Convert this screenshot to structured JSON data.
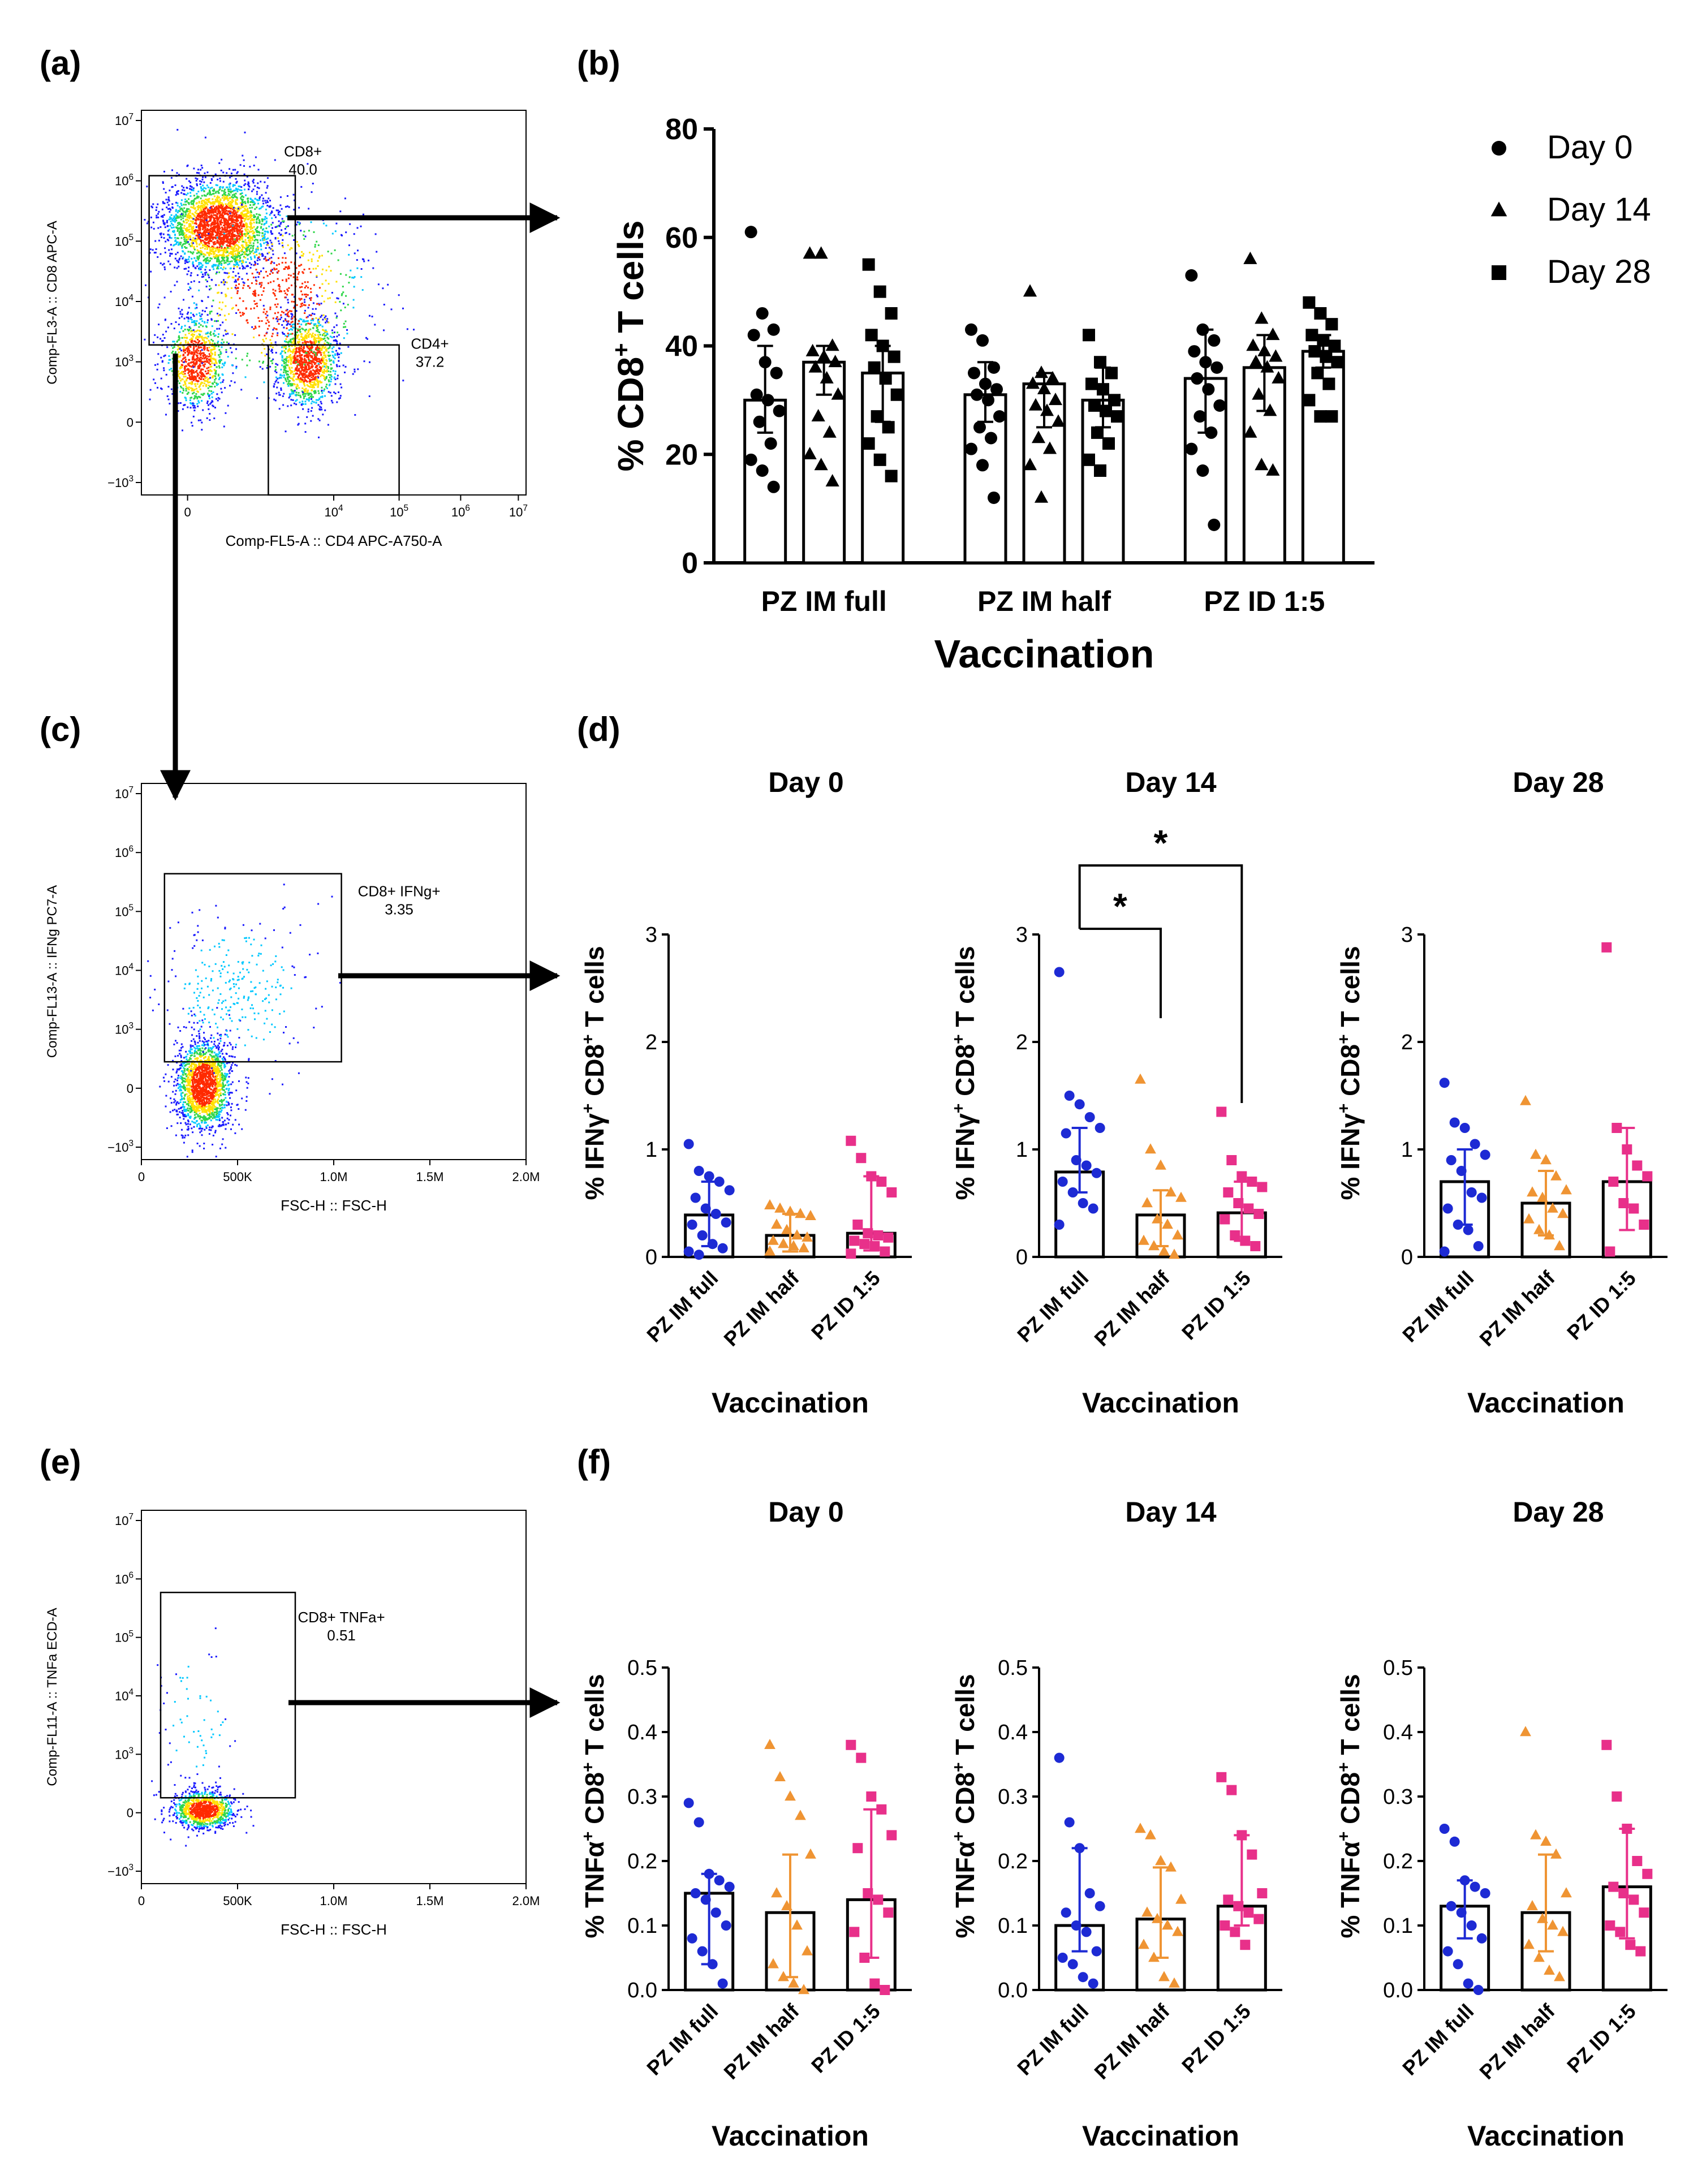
{
  "panel_labels": [
    "(a)",
    "(b)",
    "(c)",
    "(d)",
    "(e)",
    "(f)"
  ],
  "colors": {
    "PZ IM full": "#1d2ad4",
    "PZ IM half": "#ef9433",
    "PZ ID 1:5": "#e8308a",
    "black": "#000000",
    "flow_gradient": [
      "#1a1aff",
      "#00c8ff",
      "#2fd64a",
      "#ffe000",
      "#ff2a00"
    ]
  },
  "flow_plots": [
    {
      "id": "a",
      "xlabel": "Comp-FL5-A :: CD4 APC-A750-A",
      "ylabel": "Comp-FL3-A :: CD8 APC-A",
      "xticks": [
        "0",
        "10^4",
        "10^5",
        "10^6",
        "10^7"
      ],
      "yticks": [
        "10^7",
        "10^6",
        "10^5",
        "10^4",
        "10^3",
        "0",
        "-10^3"
      ],
      "gates": [
        {
          "name": "CD8+",
          "value": "40.0"
        },
        {
          "name": "CD4+",
          "value": "37.2"
        }
      ]
    },
    {
      "id": "c",
      "xlabel": "FSC-H :: FSC-H",
      "ylabel": "Comp-FL13-A :: IFNg PC7-A",
      "xticks": [
        "0",
        "500K",
        "1.0M",
        "1.5M",
        "2.0M"
      ],
      "yticks": [
        "10^7",
        "10^6",
        "10^5",
        "10^4",
        "10^3",
        "0",
        "-10^3"
      ],
      "gates": [
        {
          "name": "CD8+ IFNg+",
          "value": "3.35"
        }
      ]
    },
    {
      "id": "e",
      "xlabel": "FSC-H :: FSC-H",
      "ylabel": "Comp-FL11-A :: TNFa ECD-A",
      "xticks": [
        "0",
        "500K",
        "1.0M",
        "1.5M",
        "2.0M"
      ],
      "yticks": [
        "10^7",
        "10^6",
        "10^5",
        "10^4",
        "10^3",
        "0",
        "-10^3"
      ],
      "gates": [
        {
          "name": "CD8+ TNFa+",
          "value": "0.51"
        }
      ]
    }
  ],
  "chart_data": [
    {
      "id": "b",
      "type": "bar",
      "title": "",
      "xlabel": "Vaccination",
      "ylabel": "% CD8+ T cells",
      "ylim": [
        0,
        80
      ],
      "yticks": [
        0,
        20,
        40,
        60,
        80
      ],
      "categories": [
        "PZ IM full",
        "PZ IM half",
        "PZ ID 1:5"
      ],
      "legend": {
        "position": "top-right",
        "entries": [
          {
            "label": "Day 0",
            "marker": "circle"
          },
          {
            "label": "Day 14",
            "marker": "triangle"
          },
          {
            "label": "Day 28",
            "marker": "square"
          }
        ]
      },
      "series": [
        {
          "name": "Day 0",
          "marker": "circle",
          "values": [
            30,
            31,
            34
          ],
          "err": [
            [
              24,
              40
            ],
            [
              26,
              37
            ],
            [
              24,
              43
            ]
          ],
          "points": [
            [
              61,
              46,
              43,
              42,
              37,
              35,
              31,
              30,
              28,
              26,
              22,
              19,
              17,
              14
            ],
            [
              43,
              41,
              36,
              35,
              33,
              32,
              31,
              30,
              27,
              25,
              23,
              21,
              18,
              12
            ],
            [
              53,
              43,
              41,
              39,
              37,
              36,
              34,
              32,
              29,
              27,
              24,
              21,
              17,
              7
            ]
          ]
        },
        {
          "name": "Day 14",
          "marker": "triangle",
          "values": [
            37,
            33,
            36
          ],
          "err": [
            [
              31,
              40
            ],
            [
              25,
              35
            ],
            [
              28,
              42
            ]
          ],
          "points": [
            [
              57,
              57,
              40,
              39,
              38,
              37,
              36,
              34,
              31,
              27,
              24,
              20,
              18,
              15
            ],
            [
              50,
              35,
              34,
              33,
              32,
              30,
              29,
              28,
              26,
              23,
              21,
              18,
              12
            ],
            [
              56,
              45,
              42,
              40,
              39,
              38,
              37,
              36,
              34,
              31,
              28,
              24,
              18,
              17
            ]
          ]
        },
        {
          "name": "Day 28",
          "marker": "square",
          "values": [
            35,
            30,
            39
          ],
          "err": [
            [
              26,
              40
            ],
            [
              25,
              36
            ],
            [
              36,
              42
            ]
          ],
          "points": [
            [
              55,
              50,
              46,
              42,
              40,
              38,
              36,
              34,
              31,
              27,
              25,
              22,
              19,
              16
            ],
            [
              42,
              37,
              35,
              33,
              32,
              30,
              29,
              28,
              27,
              24,
              22,
              19,
              17
            ],
            [
              48,
              46,
              44,
              42,
              41,
              40,
              39,
              38,
              37,
              35,
              33,
              30,
              27,
              27
            ]
          ]
        }
      ]
    },
    {
      "id": "d-day0",
      "type": "bar",
      "title": "Day 0",
      "xlabel": "Vaccination",
      "ylabel": "% IFNγ+ CD8+ T cells",
      "ylim": [
        0,
        3
      ],
      "yticks": [
        0,
        1,
        2,
        3
      ],
      "categories": [
        "PZ IM full",
        "PZ IM half",
        "PZ ID 1:5"
      ],
      "values": [
        0.39,
        0.2,
        0.22
      ],
      "err": [
        [
          0.1,
          0.7
        ],
        [
          0.05,
          0.4
        ],
        [
          0.06,
          0.75
        ]
      ],
      "points": [
        [
          1.05,
          0.8,
          0.75,
          0.7,
          0.62,
          0.55,
          0.45,
          0.4,
          0.32,
          0.3,
          0.2,
          0.12,
          0.08,
          0.05,
          0.02
        ],
        [
          0.48,
          0.45,
          0.42,
          0.4,
          0.38,
          0.3,
          0.25,
          0.2,
          0.18,
          0.15,
          0.12,
          0.1,
          0.08,
          0.05
        ],
        [
          1.08,
          0.92,
          0.75,
          0.7,
          0.6,
          0.3,
          0.22,
          0.2,
          0.18,
          0.15,
          0.12,
          0.1,
          0.05,
          0.03
        ]
      ],
      "significance": []
    },
    {
      "id": "d-day14",
      "type": "bar",
      "title": "Day 14",
      "xlabel": "Vaccination",
      "ylabel": "% IFNγ+ CD8+ T cells",
      "ylim": [
        0,
        3
      ],
      "yticks": [
        0,
        1,
        2,
        3
      ],
      "categories": [
        "PZ IM full",
        "PZ IM half",
        "PZ ID 1:5"
      ],
      "values": [
        0.79,
        0.39,
        0.41
      ],
      "err": [
        [
          0.6,
          1.2
        ],
        [
          0.1,
          0.62
        ],
        [
          0.15,
          0.7
        ]
      ],
      "points": [
        [
          2.65,
          1.5,
          1.42,
          1.3,
          1.2,
          1.15,
          0.9,
          0.85,
          0.78,
          0.7,
          0.6,
          0.5,
          0.45,
          0.3
        ],
        [
          1.65,
          1.0,
          0.85,
          0.6,
          0.55,
          0.5,
          0.35,
          0.3,
          0.2,
          0.15,
          0.1,
          0.05,
          0.02
        ],
        [
          1.35,
          0.9,
          0.75,
          0.7,
          0.65,
          0.6,
          0.5,
          0.45,
          0.4,
          0.35,
          0.2,
          0.15,
          0.1
        ]
      ],
      "significance": [
        {
          "from": "PZ IM full",
          "to": "PZ IM half",
          "label": "*"
        },
        {
          "from": "PZ IM full",
          "to": "PZ ID 1:5",
          "label": "*"
        }
      ]
    },
    {
      "id": "d-day28",
      "type": "bar",
      "title": "Day 28",
      "xlabel": "Vaccination",
      "ylabel": "% IFNγ+ CD8+ T cells",
      "ylim": [
        0,
        3
      ],
      "yticks": [
        0,
        1,
        2,
        3
      ],
      "categories": [
        "PZ IM full",
        "PZ IM half",
        "PZ ID 1:5"
      ],
      "values": [
        0.7,
        0.5,
        0.7
      ],
      "err": [
        [
          0.3,
          1.0
        ],
        [
          0.2,
          0.8
        ],
        [
          0.25,
          1.2
        ]
      ],
      "points": [
        [
          1.62,
          1.25,
          1.2,
          1.05,
          0.95,
          0.9,
          0.8,
          0.6,
          0.55,
          0.45,
          0.3,
          0.25,
          0.1,
          0.05
        ],
        [
          1.45,
          0.95,
          0.9,
          0.75,
          0.62,
          0.6,
          0.55,
          0.45,
          0.4,
          0.35,
          0.25,
          0.2,
          0.1
        ],
        [
          2.88,
          1.2,
          1.0,
          0.85,
          0.75,
          0.7,
          0.5,
          0.45,
          0.3,
          0.05
        ]
      ],
      "significance": []
    },
    {
      "id": "f-day0",
      "type": "bar",
      "title": "Day 0",
      "xlabel": "Vaccination",
      "ylabel": "% TNFα+ CD8+ T cells",
      "ylim": [
        0,
        0.5
      ],
      "yticks": [
        0.0,
        0.1,
        0.2,
        0.3,
        0.4,
        0.5
      ],
      "categories": [
        "PZ IM full",
        "PZ IM half",
        "PZ ID 1:5"
      ],
      "values": [
        0.15,
        0.12,
        0.14
      ],
      "err": [
        [
          0.04,
          0.18
        ],
        [
          0.02,
          0.21
        ],
        [
          0.05,
          0.28
        ]
      ],
      "points": [
        [
          0.29,
          0.26,
          0.18,
          0.17,
          0.16,
          0.15,
          0.14,
          0.12,
          0.1,
          0.08,
          0.06,
          0.04,
          0.01
        ],
        [
          0.38,
          0.33,
          0.3,
          0.27,
          0.21,
          0.15,
          0.13,
          0.1,
          0.06,
          0.04,
          0.02,
          0.01,
          0.0
        ],
        [
          0.38,
          0.36,
          0.3,
          0.28,
          0.24,
          0.22,
          0.15,
          0.14,
          0.12,
          0.09,
          0.05,
          0.01,
          0.0
        ]
      ],
      "significance": []
    },
    {
      "id": "f-day14",
      "type": "bar",
      "title": "Day 14",
      "xlabel": "Vaccination",
      "ylabel": "% TNFα+ CD8+ T cells",
      "ylim": [
        0,
        0.5
      ],
      "yticks": [
        0.0,
        0.1,
        0.2,
        0.3,
        0.4,
        0.5
      ],
      "categories": [
        "PZ IM full",
        "PZ IM half",
        "PZ ID 1:5"
      ],
      "values": [
        0.1,
        0.11,
        0.13
      ],
      "err": [
        [
          0.06,
          0.22
        ],
        [
          0.05,
          0.19
        ],
        [
          0.1,
          0.24
        ]
      ],
      "points": [
        [
          0.36,
          0.26,
          0.22,
          0.15,
          0.13,
          0.12,
          0.1,
          0.09,
          0.06,
          0.05,
          0.04,
          0.02,
          0.01
        ],
        [
          0.25,
          0.24,
          0.2,
          0.19,
          0.14,
          0.12,
          0.11,
          0.1,
          0.09,
          0.07,
          0.05,
          0.02,
          0.01
        ],
        [
          0.33,
          0.31,
          0.24,
          0.21,
          0.15,
          0.14,
          0.13,
          0.12,
          0.11,
          0.1,
          0.09,
          0.07
        ]
      ],
      "significance": []
    },
    {
      "id": "f-day28",
      "type": "bar",
      "title": "Day 28",
      "xlabel": "Vaccination",
      "ylabel": "% TNFα+ CD8+ T cells",
      "ylim": [
        0,
        0.5
      ],
      "yticks": [
        0.0,
        0.1,
        0.2,
        0.3,
        0.4,
        0.5
      ],
      "categories": [
        "PZ IM full",
        "PZ IM half",
        "PZ ID 1:5"
      ],
      "values": [
        0.13,
        0.12,
        0.16
      ],
      "err": [
        [
          0.08,
          0.17
        ],
        [
          0.06,
          0.21
        ],
        [
          0.08,
          0.25
        ]
      ],
      "points": [
        [
          0.25,
          0.23,
          0.17,
          0.16,
          0.15,
          0.13,
          0.12,
          0.1,
          0.08,
          0.06,
          0.04,
          0.01,
          0.0
        ],
        [
          0.4,
          0.24,
          0.23,
          0.21,
          0.15,
          0.13,
          0.11,
          0.1,
          0.09,
          0.07,
          0.05,
          0.03,
          0.02
        ],
        [
          0.38,
          0.3,
          0.25,
          0.2,
          0.18,
          0.16,
          0.15,
          0.14,
          0.12,
          0.1,
          0.09,
          0.07,
          0.06
        ]
      ],
      "significance": []
    }
  ]
}
